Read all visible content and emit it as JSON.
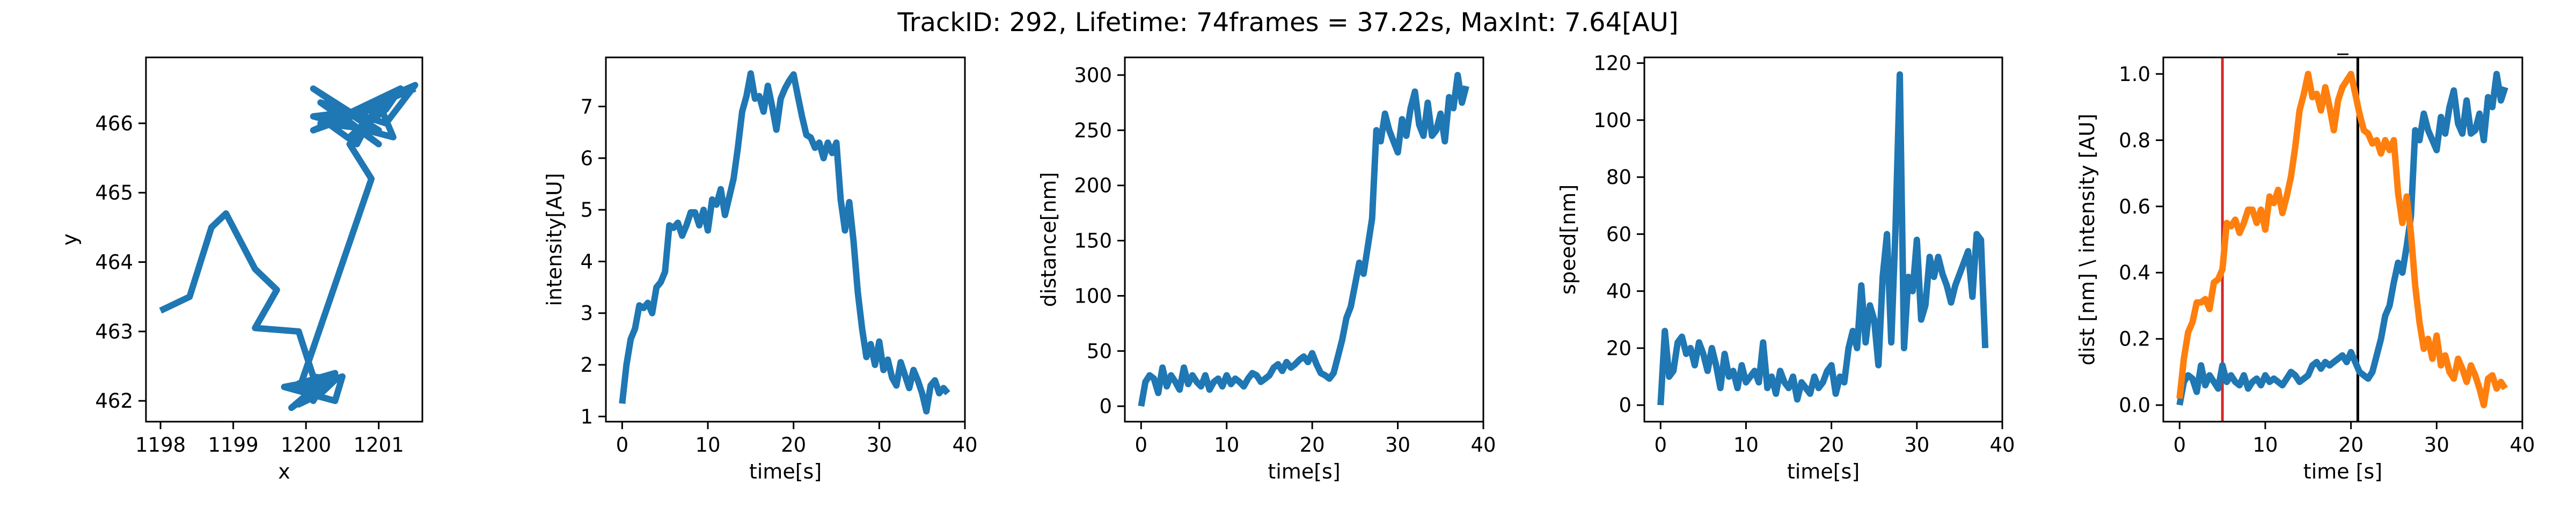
{
  "suptitle": "TrackID: 292, Lifetime: 74frames = 37.22s, MaxInt: 7.64[AU]",
  "colors": {
    "blue": "#1f77b4",
    "orange": "#ff7f0e",
    "red": "#d62728",
    "black": "#000000"
  },
  "chart_data": [
    {
      "type": "line",
      "title": "",
      "xlabel": "x",
      "ylabel": "y",
      "xlim": [
        1197.8,
        1201.6
      ],
      "ylim": [
        461.7,
        466.95
      ],
      "xticks": [
        1198,
        1199,
        1200,
        1201
      ],
      "yticks": [
        462,
        463,
        464,
        465,
        466
      ],
      "grid": false,
      "series": [
        {
          "x": [
            1198.0,
            1198.4,
            1198.7,
            1198.9,
            1199.3,
            1199.6,
            1199.3,
            1199.9,
            1200.1,
            1200.4,
            1200.2,
            1199.9,
            1200.2,
            1199.8,
            1200.3,
            1200.0,
            1199.9,
            1200.2,
            1199.8,
            1200.3,
            1200.1,
            1199.9,
            1200.4,
            1200.0,
            1199.9,
            1200.2,
            1199.7,
            1200.4,
            1200.5,
            1199.9,
            1200.9,
            1200.6,
            1201.1,
            1200.2,
            1201.0,
            1200.1,
            1200.8,
            1200.6,
            1201.1,
            1201.3,
            1200.5,
            1201.0,
            1200.2,
            1201.1,
            1201.5,
            1200.1,
            1200.9,
            1200.1,
            1201.2,
            1201.0,
            1200.7,
            1200.3,
            1201.5
          ],
          "y": [
            463.3,
            463.5,
            464.5,
            464.7,
            463.9,
            463.6,
            463.05,
            463.0,
            462.35,
            462.3,
            462.1,
            461.95,
            462.25,
            461.9,
            462.3,
            462.1,
            461.95,
            462.2,
            461.9,
            462.35,
            462.0,
            462.25,
            462.4,
            462.1,
            461.95,
            462.3,
            462.2,
            462.0,
            462.35,
            462.15,
            465.2,
            465.7,
            466.3,
            466.0,
            465.9,
            466.5,
            466.0,
            465.8,
            466.2,
            466.5,
            466.1,
            465.7,
            466.3,
            466.0,
            466.55,
            465.9,
            466.2,
            466.1,
            465.8,
            466.3,
            465.7,
            466.0,
            466.5
          ]
        }
      ]
    },
    {
      "type": "line",
      "title": "",
      "xlabel": "time[s]",
      "ylabel": "intensity[AU]",
      "xlim": [
        -1.9,
        40.0
      ],
      "ylim": [
        0.9,
        7.95
      ],
      "xticks": [
        0,
        10,
        20,
        30,
        40
      ],
      "yticks": [
        1,
        2,
        3,
        4,
        5,
        6,
        7
      ],
      "grid": false,
      "series": [
        {
          "x": [
            0.0,
            0.5,
            1.0,
            1.5,
            2.0,
            2.5,
            3.0,
            3.5,
            4.0,
            4.5,
            5.0,
            5.5,
            6.0,
            6.5,
            7.0,
            7.5,
            8.0,
            8.5,
            9.0,
            9.5,
            10.0,
            10.5,
            11.0,
            11.5,
            12.0,
            12.5,
            13.0,
            13.5,
            14.0,
            14.5,
            15.0,
            15.5,
            16.0,
            16.5,
            17.0,
            17.5,
            18.0,
            18.5,
            19.0,
            19.5,
            20.0,
            20.5,
            21.0,
            21.5,
            22.0,
            22.5,
            23.0,
            23.5,
            24.0,
            24.5,
            25.0,
            25.5,
            26.0,
            26.5,
            27.0,
            27.5,
            28.0,
            28.5,
            29.0,
            29.5,
            30.0,
            30.5,
            31.0,
            31.5,
            32.0,
            32.5,
            33.0,
            33.5,
            34.0,
            34.5,
            35.0,
            35.5,
            36.0,
            36.5,
            37.0,
            37.5,
            38.0
          ],
          "y": [
            1.25,
            2.0,
            2.5,
            2.7,
            3.15,
            3.1,
            3.2,
            3.0,
            3.5,
            3.6,
            3.8,
            4.7,
            4.65,
            4.75,
            4.5,
            4.7,
            4.95,
            4.95,
            4.7,
            5.0,
            4.6,
            5.2,
            5.1,
            5.4,
            4.9,
            5.25,
            5.6,
            6.2,
            6.9,
            7.2,
            7.64,
            7.15,
            7.2,
            6.9,
            7.4,
            7.0,
            6.55,
            7.15,
            7.35,
            7.5,
            7.62,
            7.2,
            6.8,
            6.45,
            6.4,
            6.2,
            6.3,
            6.0,
            6.3,
            6.1,
            6.3,
            5.2,
            4.6,
            5.15,
            4.4,
            3.4,
            2.7,
            2.15,
            2.4,
            2.0,
            2.45,
            1.9,
            2.1,
            1.75,
            1.6,
            2.05,
            1.8,
            1.55,
            1.9,
            1.7,
            1.45,
            1.1,
            1.6,
            1.7,
            1.45,
            1.55,
            1.45
          ]
        }
      ]
    },
    {
      "type": "line",
      "title": "",
      "xlabel": "time[s]",
      "ylabel": "distance[nm]",
      "xlim": [
        -1.9,
        40.0
      ],
      "ylim": [
        -14,
        316
      ],
      "xticks": [
        0,
        10,
        20,
        30,
        40
      ],
      "yticks": [
        0,
        50,
        100,
        150,
        200,
        250,
        300
      ],
      "grid": false,
      "series": [
        {
          "x": [
            0.0,
            0.5,
            1.0,
            1.5,
            2.0,
            2.5,
            3.0,
            3.5,
            4.0,
            4.5,
            5.0,
            5.5,
            6.0,
            6.5,
            7.0,
            7.5,
            8.0,
            8.5,
            9.0,
            9.5,
            10.0,
            10.5,
            11.0,
            11.5,
            12.0,
            12.5,
            13.0,
            13.5,
            14.0,
            14.5,
            15.0,
            15.5,
            16.0,
            16.5,
            17.0,
            17.5,
            18.0,
            18.5,
            19.0,
            19.5,
            20.0,
            20.5,
            21.0,
            21.5,
            22.0,
            22.5,
            23.0,
            23.5,
            24.0,
            24.5,
            25.0,
            25.5,
            26.0,
            26.5,
            27.0,
            27.5,
            28.0,
            28.5,
            29.0,
            29.5,
            30.0,
            30.5,
            31.0,
            31.5,
            32.0,
            32.5,
            33.0,
            33.5,
            34.0,
            34.5,
            35.0,
            35.5,
            36.0,
            36.5,
            37.0,
            37.5,
            38.0
          ],
          "y": [
            0,
            22,
            28,
            25,
            12,
            35,
            18,
            28,
            22,
            15,
            35,
            20,
            28,
            22,
            18,
            28,
            15,
            22,
            25,
            18,
            28,
            20,
            25,
            22,
            18,
            25,
            30,
            28,
            22,
            25,
            28,
            35,
            38,
            32,
            40,
            35,
            38,
            42,
            45,
            40,
            48,
            38,
            30,
            28,
            25,
            30,
            45,
            60,
            80,
            90,
            110,
            130,
            120,
            145,
            170,
            250,
            240,
            265,
            250,
            240,
            230,
            260,
            245,
            270,
            285,
            255,
            245,
            275,
            245,
            250,
            265,
            240,
            280,
            270,
            300,
            275,
            290
          ]
        }
      ]
    },
    {
      "type": "line",
      "title": "",
      "xlabel": "time[s]",
      "ylabel": "speed[nm]",
      "xlim": [
        -1.9,
        40.0
      ],
      "ylim": [
        -5.8,
        122
      ],
      "xticks": [
        0,
        10,
        20,
        30,
        40
      ],
      "yticks": [
        0,
        20,
        40,
        60,
        80,
        100,
        120
      ],
      "grid": false,
      "series": [
        {
          "x": [
            0.0,
            0.5,
            1.0,
            1.5,
            2.0,
            2.5,
            3.0,
            3.5,
            4.0,
            4.5,
            5.0,
            5.5,
            6.0,
            6.5,
            7.0,
            7.5,
            8.0,
            8.5,
            9.0,
            9.5,
            10.0,
            10.5,
            11.0,
            11.5,
            12.0,
            12.5,
            13.0,
            13.5,
            14.0,
            14.5,
            15.0,
            15.5,
            16.0,
            16.5,
            17.0,
            17.5,
            18.0,
            18.5,
            19.0,
            19.5,
            20.0,
            20.5,
            21.0,
            21.5,
            22.0,
            22.5,
            23.0,
            23.5,
            24.0,
            24.5,
            25.0,
            25.5,
            26.0,
            26.5,
            27.0,
            27.5,
            28.0,
            28.5,
            29.0,
            29.5,
            30.0,
            30.5,
            31.0,
            31.5,
            32.0,
            32.5,
            33.0,
            33.5,
            34.0,
            34.5,
            35.0,
            35.5,
            36.0,
            36.5,
            37.0,
            37.5,
            38.0
          ],
          "y": [
            0,
            26,
            10,
            12,
            22,
            24,
            18,
            20,
            14,
            22,
            18,
            12,
            20,
            14,
            6,
            18,
            10,
            12,
            6,
            14,
            8,
            10,
            12,
            8,
            22,
            6,
            10,
            4,
            12,
            8,
            6,
            10,
            2,
            8,
            6,
            4,
            10,
            6,
            8,
            12,
            14,
            4,
            10,
            8,
            20,
            26,
            20,
            42,
            22,
            35,
            30,
            14,
            45,
            60,
            22,
            62,
            116,
            20,
            45,
            40,
            58,
            30,
            35,
            52,
            45,
            52,
            46,
            42,
            36,
            42,
            46,
            50,
            54,
            38,
            60,
            58,
            20
          ]
        }
      ]
    },
    {
      "type": "line",
      "title": "_",
      "xlabel": "time [s]",
      "ylabel": "dist [nm] \\ intensity [AU]",
      "xlim": [
        -1.9,
        40.0
      ],
      "ylim": [
        -0.05,
        1.05
      ],
      "xticks": [
        0,
        10,
        20,
        30,
        40
      ],
      "yticks": [
        0.0,
        0.2,
        0.4,
        0.6,
        0.8,
        1.0
      ],
      "grid": false,
      "vlines": [
        {
          "x": 5.0,
          "color": "red"
        },
        {
          "x": 20.8,
          "color": "black"
        }
      ],
      "series": [
        {
          "color": "blue",
          "x": [
            0.0,
            0.5,
            1.0,
            1.5,
            2.0,
            2.5,
            3.0,
            3.5,
            4.0,
            4.5,
            5.0,
            5.5,
            6.0,
            6.5,
            7.0,
            7.5,
            8.0,
            8.5,
            9.0,
            9.5,
            10.0,
            10.5,
            11.0,
            11.5,
            12.0,
            12.5,
            13.0,
            13.5,
            14.0,
            14.5,
            15.0,
            15.5,
            16.0,
            16.5,
            17.0,
            17.5,
            18.0,
            18.5,
            19.0,
            19.5,
            20.0,
            20.5,
            21.0,
            21.5,
            22.0,
            22.5,
            23.0,
            23.5,
            24.0,
            24.5,
            25.0,
            25.5,
            26.0,
            26.5,
            27.0,
            27.5,
            28.0,
            28.5,
            29.0,
            29.5,
            30.0,
            30.5,
            31.0,
            31.5,
            32.0,
            32.5,
            33.0,
            33.5,
            34.0,
            34.5,
            35.0,
            35.5,
            36.0,
            36.5,
            37.0,
            37.5,
            38.0
          ],
          "y": [
            0.0,
            0.07,
            0.09,
            0.08,
            0.04,
            0.12,
            0.06,
            0.09,
            0.07,
            0.05,
            0.12,
            0.07,
            0.09,
            0.07,
            0.06,
            0.09,
            0.05,
            0.07,
            0.08,
            0.06,
            0.09,
            0.07,
            0.08,
            0.07,
            0.06,
            0.08,
            0.1,
            0.09,
            0.07,
            0.08,
            0.09,
            0.12,
            0.13,
            0.11,
            0.13,
            0.12,
            0.13,
            0.14,
            0.15,
            0.13,
            0.16,
            0.13,
            0.1,
            0.09,
            0.08,
            0.1,
            0.15,
            0.2,
            0.27,
            0.3,
            0.37,
            0.43,
            0.4,
            0.48,
            0.57,
            0.83,
            0.8,
            0.88,
            0.83,
            0.8,
            0.77,
            0.87,
            0.82,
            0.9,
            0.95,
            0.85,
            0.82,
            0.92,
            0.82,
            0.83,
            0.88,
            0.8,
            0.93,
            0.9,
            1.0,
            0.92,
            0.96
          ]
        },
        {
          "color": "orange",
          "x": [
            0.0,
            0.5,
            1.0,
            1.5,
            2.0,
            2.5,
            3.0,
            3.5,
            4.0,
            4.5,
            5.0,
            5.5,
            6.0,
            6.5,
            7.0,
            7.5,
            8.0,
            8.5,
            9.0,
            9.5,
            10.0,
            10.5,
            11.0,
            11.5,
            12.0,
            12.5,
            13.0,
            13.5,
            14.0,
            14.5,
            15.0,
            15.5,
            16.0,
            16.5,
            17.0,
            17.5,
            18.0,
            18.5,
            19.0,
            19.5,
            20.0,
            20.5,
            21.0,
            21.5,
            22.0,
            22.5,
            23.0,
            23.5,
            24.0,
            24.5,
            25.0,
            25.5,
            26.0,
            26.5,
            27.0,
            27.5,
            28.0,
            28.5,
            29.0,
            29.5,
            30.0,
            30.5,
            31.0,
            31.5,
            32.0,
            32.5,
            33.0,
            33.5,
            34.0,
            34.5,
            35.0,
            35.5,
            36.0,
            36.5,
            37.0,
            37.5,
            38.0
          ],
          "y": [
            0.02,
            0.14,
            0.22,
            0.25,
            0.31,
            0.31,
            0.32,
            0.29,
            0.37,
            0.38,
            0.41,
            0.55,
            0.54,
            0.56,
            0.52,
            0.55,
            0.59,
            0.59,
            0.55,
            0.59,
            0.53,
            0.63,
            0.61,
            0.65,
            0.58,
            0.63,
            0.69,
            0.78,
            0.89,
            0.94,
            1.0,
            0.93,
            0.94,
            0.89,
            0.96,
            0.9,
            0.83,
            0.92,
            0.96,
            0.98,
            1.0,
            0.94,
            0.88,
            0.83,
            0.82,
            0.79,
            0.8,
            0.76,
            0.8,
            0.77,
            0.8,
            0.64,
            0.55,
            0.63,
            0.52,
            0.36,
            0.25,
            0.17,
            0.2,
            0.14,
            0.21,
            0.12,
            0.15,
            0.1,
            0.08,
            0.14,
            0.11,
            0.07,
            0.12,
            0.09,
            0.05,
            0.0,
            0.08,
            0.09,
            0.05,
            0.07,
            0.05
          ]
        }
      ]
    }
  ]
}
